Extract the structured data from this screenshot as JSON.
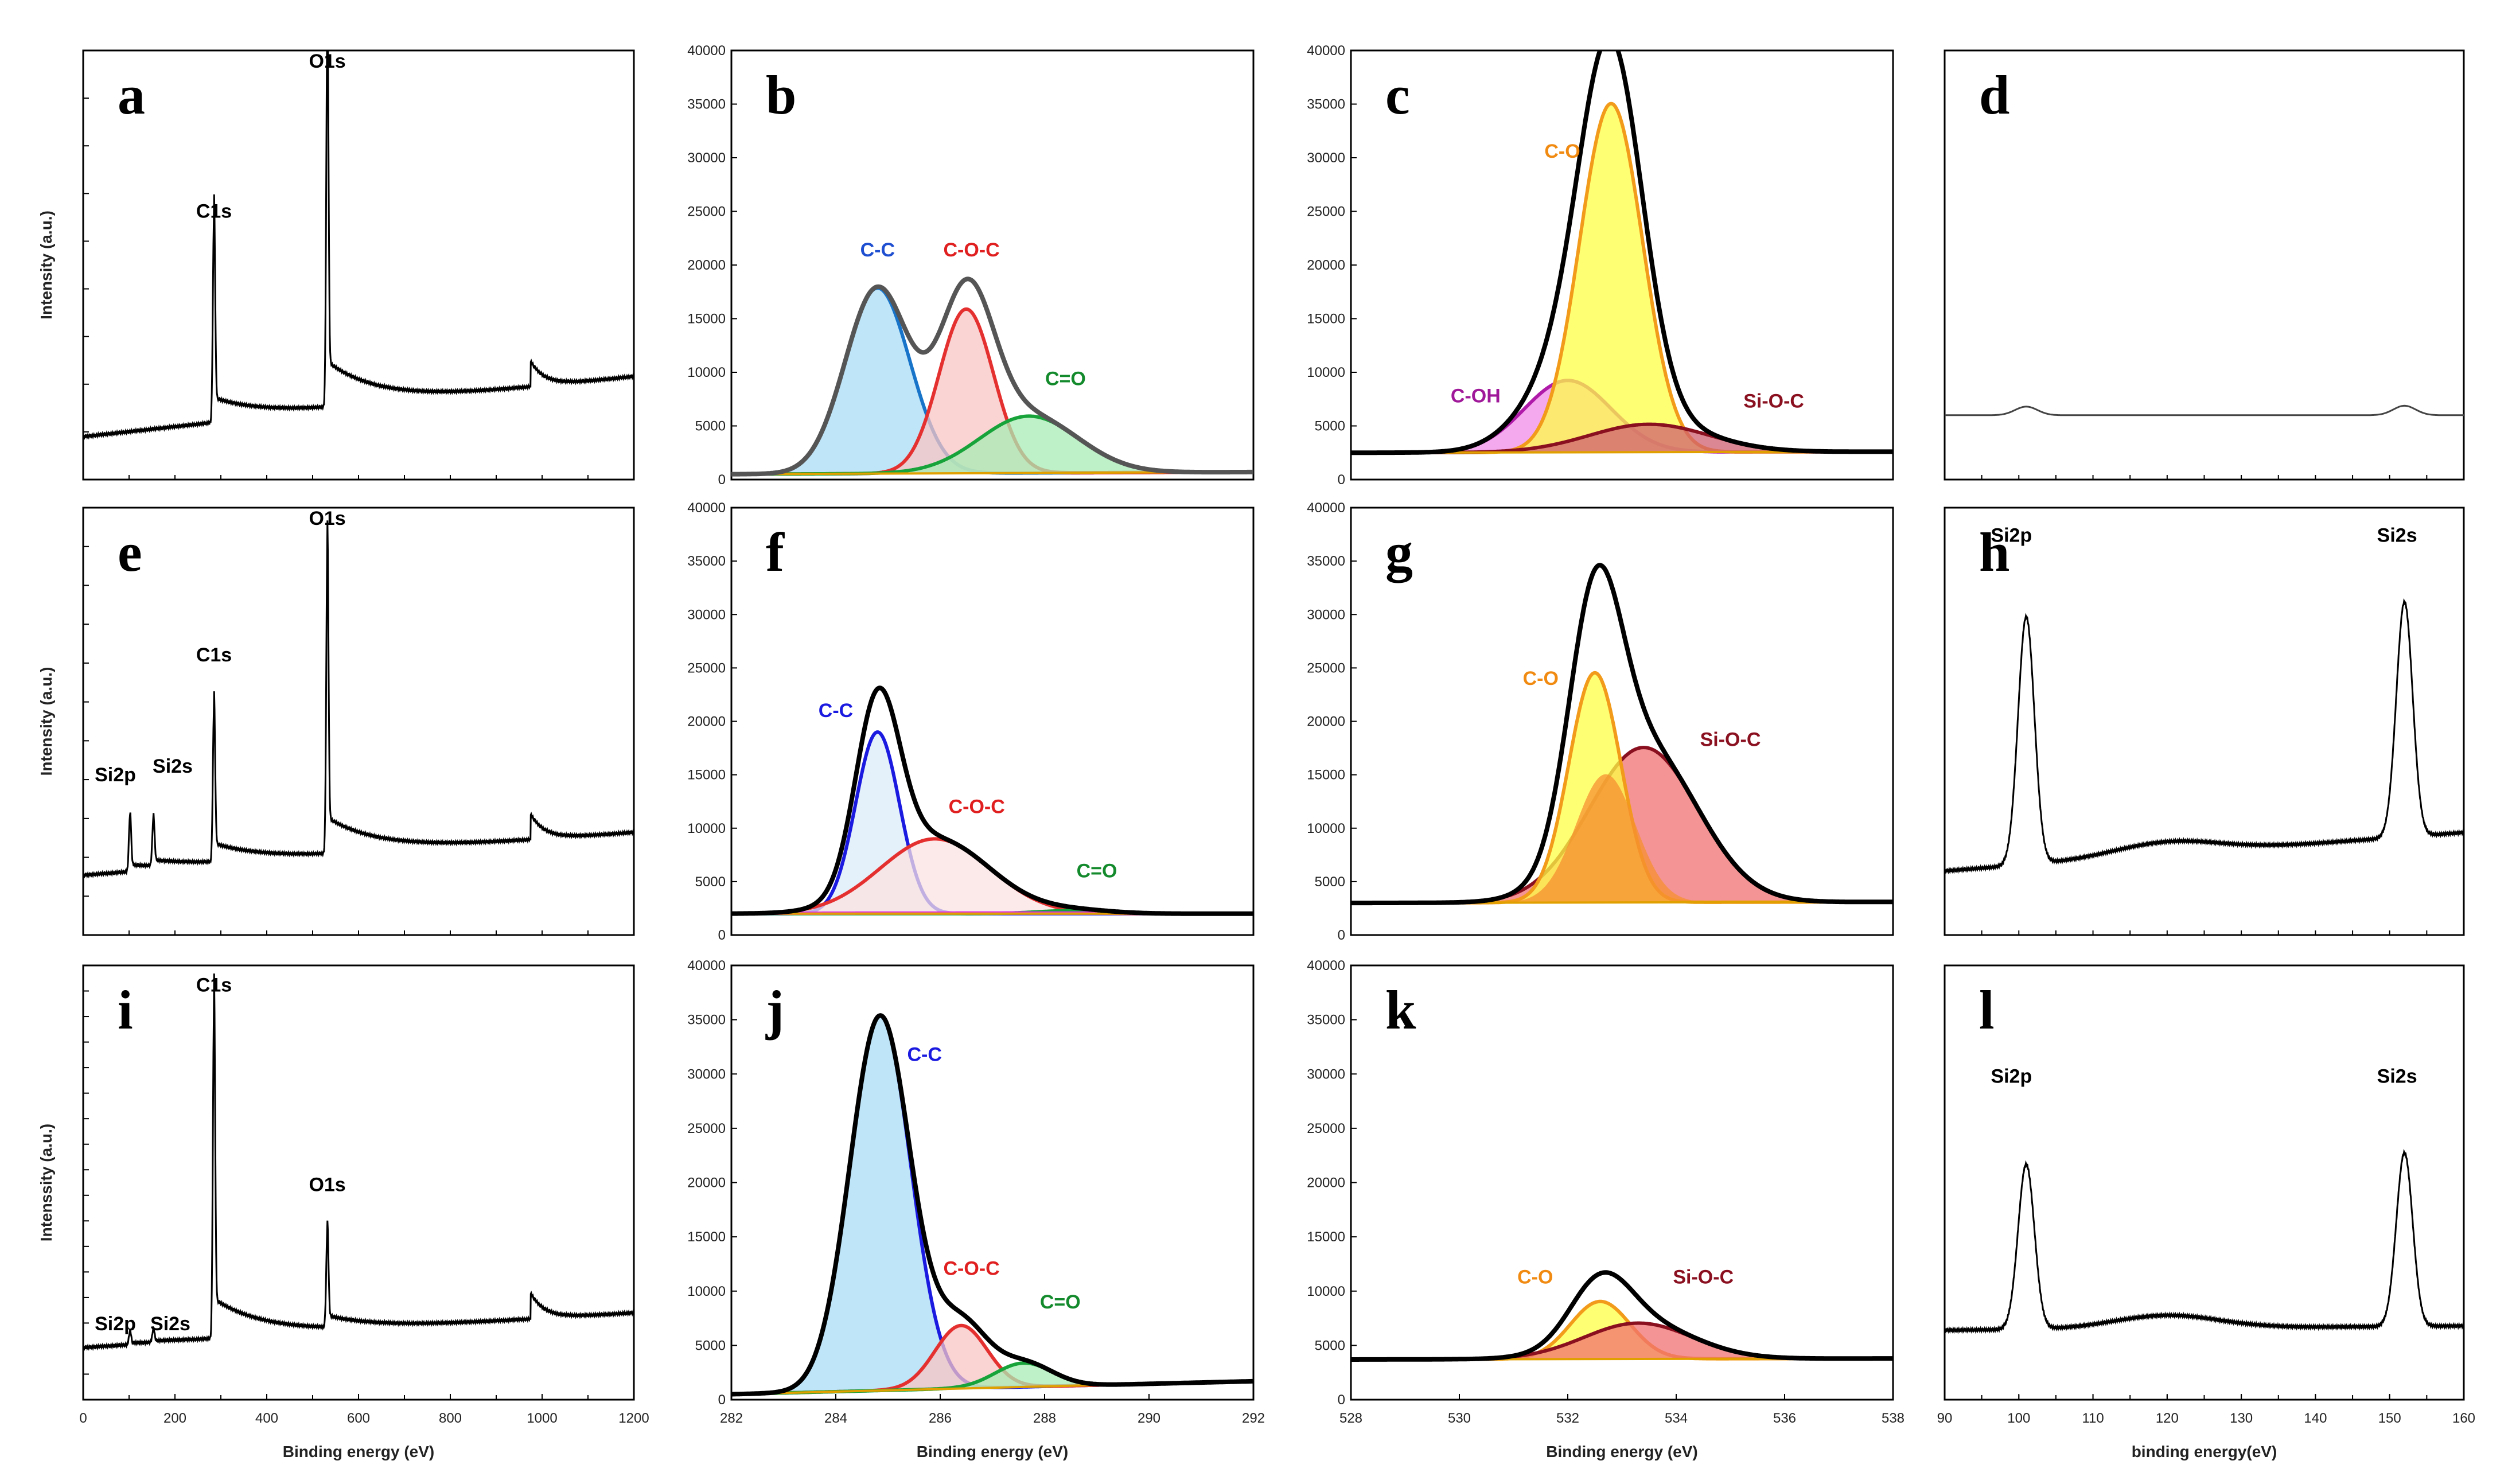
{
  "figure": {
    "domain_note": "XPS spectra, 12 panels (a-l)"
  },
  "chart_data": [
    {
      "id": "a",
      "letter": "a",
      "type": "line",
      "kind": "survey",
      "ylabel": "Intensity (a.u.)",
      "xlabel": "",
      "xlim": [
        0,
        1200
      ],
      "ylim": [
        0,
        100
      ],
      "xticks": [],
      "yticks": [],
      "ytick_marks": 8,
      "xtick_marks": 12,
      "peaks": [
        {
          "label": "C1s",
          "x": 285,
          "h": 48
        },
        {
          "label": "O1s",
          "x": 532,
          "h": 88
        }
      ],
      "base_start": 10,
      "base_end": 24,
      "annotations": [
        {
          "text": "C1s",
          "x": 285,
          "y": 61,
          "color": "#000"
        },
        {
          "text": "O1s",
          "x": 532,
          "y": 96,
          "color": "#000"
        }
      ]
    },
    {
      "id": "b",
      "letter": "b",
      "type": "line",
      "kind": "fit",
      "ylabel": "",
      "xlabel": "",
      "xlim": [
        282,
        292
      ],
      "ylim": [
        0,
        40000
      ],
      "xticks": [],
      "yticks": [
        0,
        5000,
        10000,
        15000,
        20000,
        25000,
        30000,
        35000,
        40000
      ],
      "baseline": [
        500,
        700
      ],
      "components": [
        {
          "name": "C-C",
          "center": 284.8,
          "amp": 17300,
          "sigma": 0.62,
          "stroke": "#1874c9",
          "fill": "#aadcf5"
        },
        {
          "name": "C-O-C",
          "center": 286.5,
          "amp": 15300,
          "sigma": 0.52,
          "stroke": "#e53030",
          "fill": "#f8c4c4"
        },
        {
          "name": "C=O",
          "center": 287.7,
          "amp": 5300,
          "sigma": 0.95,
          "stroke": "#18a33a",
          "fill": "#a8ecb4"
        }
      ],
      "envelope_color": "#555555",
      "annotations": [
        {
          "text": "C-C",
          "x": 284.8,
          "y": 20800,
          "color": "#1f4fd1"
        },
        {
          "text": "C-O-C",
          "x": 286.6,
          "y": 20800,
          "color": "#e02020"
        },
        {
          "text": "C=O",
          "x": 288.4,
          "y": 8800,
          "color": "#138a2c"
        }
      ]
    },
    {
      "id": "c",
      "letter": "c",
      "type": "line",
      "kind": "fit",
      "ylabel": "",
      "xlabel": "",
      "xlim": [
        528,
        538
      ],
      "ylim": [
        0,
        40000
      ],
      "xticks": [],
      "yticks": [
        0,
        5000,
        10000,
        15000,
        20000,
        25000,
        30000,
        35000,
        40000
      ],
      "baseline": [
        2500,
        2600
      ],
      "components": [
        {
          "name": "C-OH",
          "center": 532.0,
          "amp": 6700,
          "sigma": 0.8,
          "stroke": "#b01aa8",
          "fill": "#f08be8"
        },
        {
          "name": "C-O",
          "center": 532.8,
          "amp": 32500,
          "sigma": 0.58,
          "stroke": "#f29a1a",
          "fill": "#ffff44"
        },
        {
          "name": "Si-O-C",
          "center": 533.5,
          "amp": 2600,
          "sigma": 1.1,
          "stroke": "#8a1020",
          "fill": "#d06070"
        }
      ],
      "envelope_color": "#000000",
      "annotations": [
        {
          "text": "C-O",
          "x": 531.9,
          "y": 30000,
          "color": "#f08a10"
        },
        {
          "text": "C-OH",
          "x": 530.3,
          "y": 7200,
          "color": "#a0189a"
        },
        {
          "text": "Si-O-C",
          "x": 535.8,
          "y": 6700,
          "color": "#8a1020"
        }
      ]
    },
    {
      "id": "d",
      "letter": "d",
      "type": "line",
      "kind": "flat",
      "ylabel": "",
      "xlabel": "",
      "xlim": [
        90,
        160
      ],
      "ylim": [
        0,
        100
      ],
      "xticks": [],
      "yticks": [],
      "ytick_marks": 0,
      "xtick_marks": 14,
      "level": 15,
      "peaks": [
        {
          "label": "",
          "x": 101,
          "h": 2
        },
        {
          "label": "",
          "x": 152,
          "h": 2.2
        }
      ],
      "annotations": []
    },
    {
      "id": "e",
      "letter": "e",
      "type": "line",
      "kind": "survey",
      "ylabel": "Intensity (a.u.)",
      "xlabel": "",
      "xlim": [
        0,
        1200
      ],
      "ylim": [
        0,
        100
      ],
      "xticks": [],
      "yticks": [],
      "ytick_marks": 10,
      "xtick_marks": 12,
      "peaks": [
        {
          "label": "Si2p",
          "x": 102,
          "h": 13
        },
        {
          "label": "Si2s",
          "x": 153,
          "h": 11
        },
        {
          "label": "C1s",
          "x": 285,
          "h": 36
        },
        {
          "label": "O1s",
          "x": 532,
          "h": 70
        }
      ],
      "base_start": 14,
      "base_end": 24,
      "annotations": [
        {
          "text": "Si2p",
          "x": 70,
          "y": 36,
          "color": "#000"
        },
        {
          "text": "Si2s",
          "x": 195,
          "y": 38,
          "color": "#000"
        },
        {
          "text": "C1s",
          "x": 285,
          "y": 64,
          "color": "#000"
        },
        {
          "text": "O1s",
          "x": 532,
          "y": 96,
          "color": "#000"
        }
      ]
    },
    {
      "id": "f",
      "letter": "f",
      "type": "line",
      "kind": "fit",
      "ylabel": "",
      "xlabel": "",
      "xlim": [
        282,
        292
      ],
      "ylim": [
        0,
        40000
      ],
      "xticks": [],
      "yticks": [
        0,
        5000,
        10000,
        15000,
        20000,
        25000,
        30000,
        35000,
        40000
      ],
      "baseline": [
        2000,
        2000
      ],
      "components": [
        {
          "name": "C-C",
          "center": 284.8,
          "amp": 17000,
          "sigma": 0.42,
          "stroke": "#1a1ae0",
          "fill": "#dcecf8"
        },
        {
          "name": "C-O-C",
          "center": 285.9,
          "amp": 7000,
          "sigma": 1.05,
          "stroke": "#e53030",
          "fill": "#fbe2e2"
        },
        {
          "name": "C=O",
          "center": 288.6,
          "amp": 300,
          "sigma": 0.7,
          "stroke": "#18a33a",
          "fill": "#c8f0d0"
        },
        {
          "name": "base",
          "center": 287,
          "amp": 60,
          "sigma": 4,
          "stroke": "#e030e0",
          "fill": "none"
        }
      ],
      "envelope_color": "#000000",
      "annotations": [
        {
          "text": "C-C",
          "x": 284.0,
          "y": 20400,
          "color": "#1a1ae0"
        },
        {
          "text": "C-O-C",
          "x": 286.7,
          "y": 11400,
          "color": "#e02020"
        },
        {
          "text": "C=O",
          "x": 289.0,
          "y": 5400,
          "color": "#138a2c"
        }
      ]
    },
    {
      "id": "g",
      "letter": "g",
      "type": "line",
      "kind": "fit",
      "ylabel": "",
      "xlabel": "",
      "xlim": [
        528,
        538
      ],
      "ylim": [
        0,
        40000
      ],
      "xticks": [],
      "yticks": [
        0,
        5000,
        10000,
        15000,
        20000,
        25000,
        30000,
        35000,
        40000
      ],
      "baseline": [
        3000,
        3100
      ],
      "components": [
        {
          "name": "Si-O-C",
          "center": 533.4,
          "amp": 14500,
          "sigma": 1.0,
          "stroke": "#8a1020",
          "fill": "#f07070"
        },
        {
          "name": "C-O",
          "center": 532.5,
          "amp": 21500,
          "sigma": 0.48,
          "stroke": "#f29a1a",
          "fill": "#ffff44"
        },
        {
          "name": "over",
          "center": 532.7,
          "amp": 12000,
          "sigma": 0.55,
          "stroke": "none",
          "fill": "#f59030"
        }
      ],
      "envelope_color": "#000000",
      "annotations": [
        {
          "text": "C-O",
          "x": 531.5,
          "y": 23400,
          "color": "#f08a10"
        },
        {
          "text": "Si-O-C",
          "x": 535.0,
          "y": 17700,
          "color": "#8a1020"
        }
      ]
    },
    {
      "id": "h",
      "letter": "h",
      "type": "line",
      "kind": "si",
      "ylabel": "",
      "xlabel": "",
      "xlim": [
        90,
        160
      ],
      "ylim": [
        0,
        100
      ],
      "xticks": [],
      "yticks": [],
      "ytick_marks": 0,
      "xtick_marks": 14,
      "peaks": [
        {
          "label": "Si2p",
          "x": 101,
          "h": 58
        },
        {
          "label": "Si2s",
          "x": 152,
          "h": 55
        }
      ],
      "base_start": 15,
      "base_end": 24,
      "annotations": [
        {
          "text": "Si2p",
          "x": 99,
          "y": 92,
          "color": "#000"
        },
        {
          "text": "Si2s",
          "x": 151,
          "y": 92,
          "color": "#000"
        }
      ]
    },
    {
      "id": "i",
      "letter": "i",
      "type": "line",
      "kind": "survey",
      "ylabel": "Intenssity (a.u.)",
      "xlabel": "Binding energy (eV)",
      "xlim": [
        0,
        1200
      ],
      "ylim": [
        0,
        100
      ],
      "xticks": [
        0,
        200,
        400,
        600,
        800,
        1000,
        1200
      ],
      "yticks": [],
      "ytick_marks": 16,
      "xtick_marks": 12,
      "peaks": [
        {
          "label": "Si2p",
          "x": 102,
          "h": 3
        },
        {
          "label": "Si2s",
          "x": 153,
          "h": 3
        },
        {
          "label": "C1s",
          "x": 285,
          "h": 76
        },
        {
          "label": "O1s",
          "x": 532,
          "h": 22
        }
      ],
      "base_start": 12,
      "base_end": 20,
      "annotations": [
        {
          "text": "C1s",
          "x": 285,
          "y": 94,
          "color": "#000"
        },
        {
          "text": "O1s",
          "x": 532,
          "y": 48,
          "color": "#000"
        },
        {
          "text": "Si2p",
          "x": 70,
          "y": 16,
          "color": "#000"
        },
        {
          "text": "Si2s",
          "x": 190,
          "y": 16,
          "color": "#000"
        }
      ]
    },
    {
      "id": "j",
      "letter": "j",
      "type": "line",
      "kind": "fit",
      "ylabel": "",
      "xlabel": "Binding energy (eV)",
      "xlim": [
        282,
        292
      ],
      "ylim": [
        0,
        40000
      ],
      "xticks": [
        282,
        284,
        286,
        288,
        290,
        292
      ],
      "yticks": [
        0,
        5000,
        10000,
        15000,
        20000,
        25000,
        30000,
        35000,
        40000
      ],
      "baseline": [
        500,
        1700
      ],
      "components": [
        {
          "name": "C-C",
          "center": 284.85,
          "amp": 34500,
          "sigma": 0.58,
          "stroke": "#1a1ae0",
          "fill": "#a8dcf5"
        },
        {
          "name": "C-O-C",
          "center": 286.4,
          "amp": 5800,
          "sigma": 0.5,
          "stroke": "#e53030",
          "fill": "#f8c4c4"
        },
        {
          "name": "C=O",
          "center": 287.6,
          "amp": 2200,
          "sigma": 0.55,
          "stroke": "#18a33a",
          "fill": "#a8ecb4"
        }
      ],
      "envelope_color": "#000000",
      "annotations": [
        {
          "text": "C-C",
          "x": 285.7,
          "y": 31200,
          "color": "#1a1ae0"
        },
        {
          "text": "C-O-C",
          "x": 286.6,
          "y": 11500,
          "color": "#e02020"
        },
        {
          "text": "C=O",
          "x": 288.3,
          "y": 8400,
          "color": "#138a2c"
        }
      ]
    },
    {
      "id": "k",
      "letter": "k",
      "type": "line",
      "kind": "fit",
      "ylabel": "",
      "xlabel": "Binding energy (eV)",
      "xlim": [
        528,
        538
      ],
      "ylim": [
        0,
        40000
      ],
      "xticks": [
        528,
        530,
        532,
        534,
        536,
        538
      ],
      "yticks": [
        0,
        5000,
        10000,
        15000,
        20000,
        25000,
        30000,
        35000,
        40000
      ],
      "baseline": [
        3700,
        3800
      ],
      "components": [
        {
          "name": "C-O",
          "center": 532.6,
          "amp": 5300,
          "sigma": 0.55,
          "stroke": "#f29a1a",
          "fill": "#ffff44"
        },
        {
          "name": "Si-O-C",
          "center": 533.3,
          "amp": 3300,
          "sigma": 1.0,
          "stroke": "#8a1020",
          "fill": "#f07070"
        }
      ],
      "envelope_color": "#000000",
      "annotations": [
        {
          "text": "C-O",
          "x": 531.4,
          "y": 10700,
          "color": "#f08a10"
        },
        {
          "text": "Si-O-C",
          "x": 534.5,
          "y": 10700,
          "color": "#8a1020"
        }
      ]
    },
    {
      "id": "l",
      "letter": "l",
      "type": "line",
      "kind": "si",
      "ylabel": "",
      "xlabel": "binding energy(eV)",
      "xlim": [
        90,
        160
      ],
      "ylim": [
        0,
        100
      ],
      "xticks": [
        90,
        100,
        110,
        120,
        130,
        140,
        150,
        160
      ],
      "yticks": [],
      "ytick_marks": 0,
      "xtick_marks": 14,
      "peaks": [
        {
          "label": "Si2p",
          "x": 101,
          "h": 38
        },
        {
          "label": "Si2s",
          "x": 152,
          "h": 40
        }
      ],
      "base_start": 16,
      "base_end": 17,
      "annotations": [
        {
          "text": "Si2p",
          "x": 99,
          "y": 73,
          "color": "#000"
        },
        {
          "text": "Si2s",
          "x": 151,
          "y": 73,
          "color": "#000"
        }
      ]
    }
  ]
}
